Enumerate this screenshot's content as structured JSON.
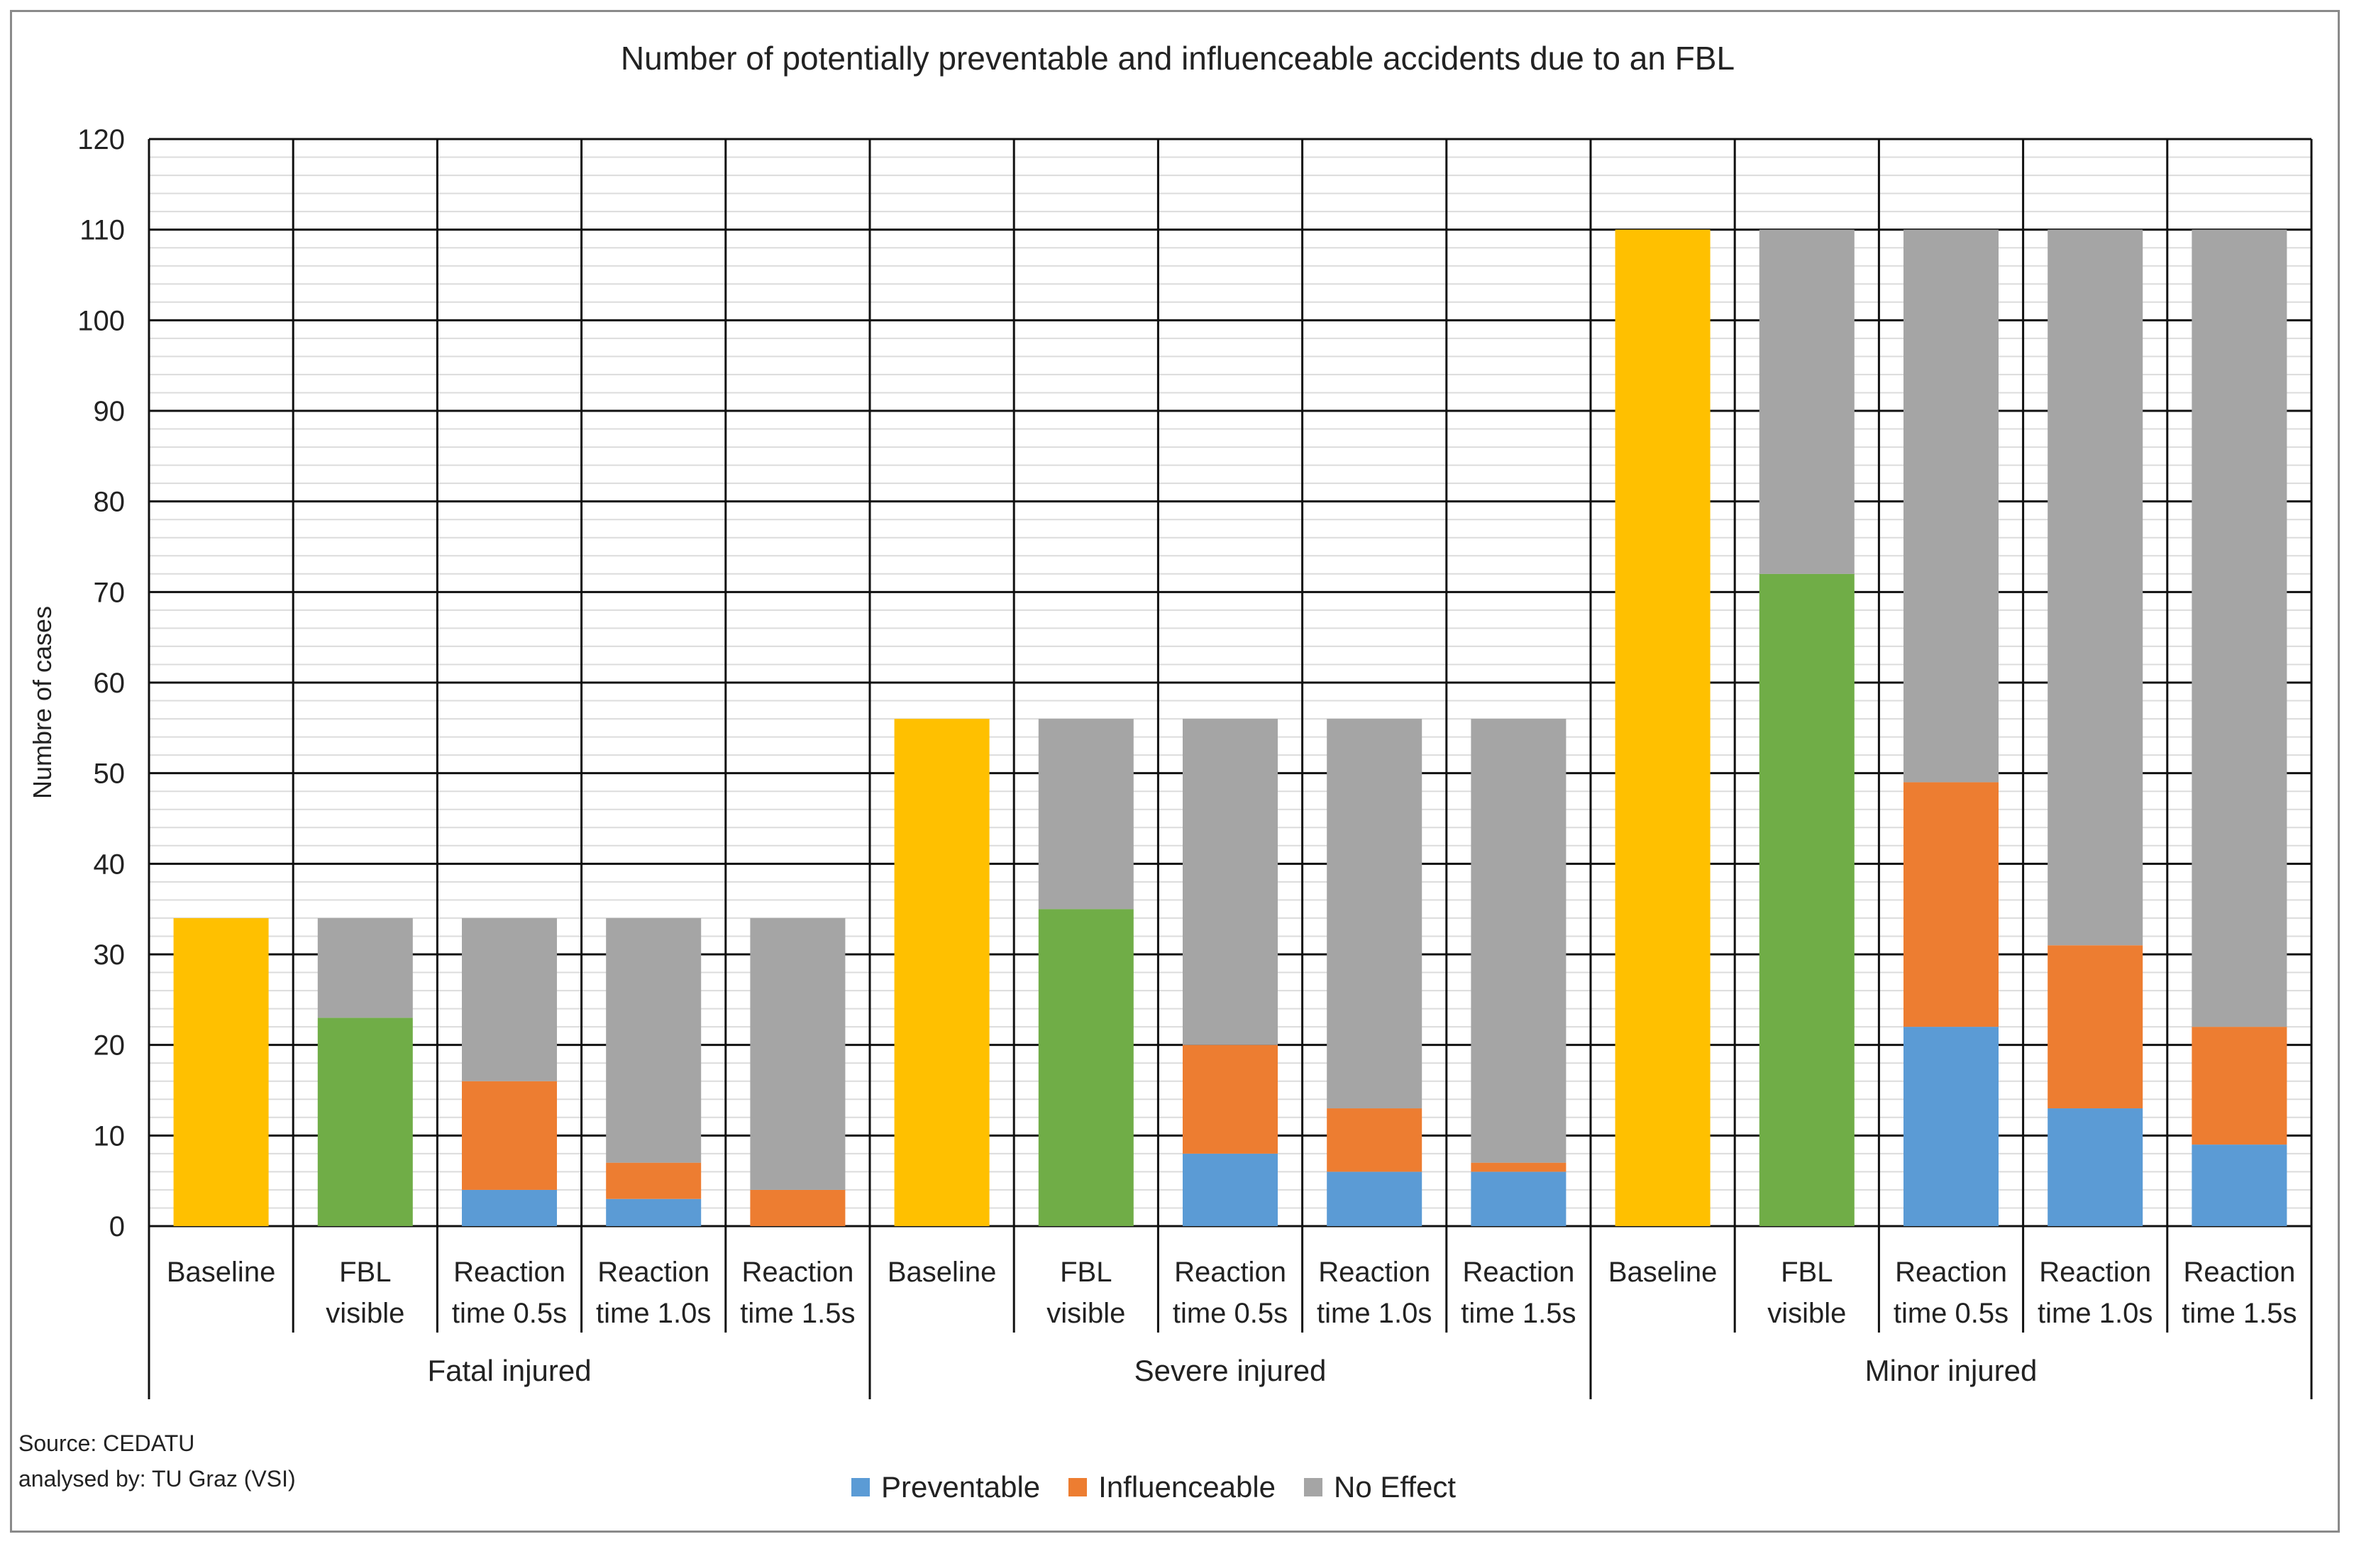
{
  "chart_data": {
    "type": "bar",
    "stacked": true,
    "title": "Number of potentially preventable and influenceable accidents due to an FBL",
    "ylabel": "Numbre of cases",
    "xlabel": "",
    "ylim": [
      0,
      120
    ],
    "yticks": [
      0,
      10,
      20,
      30,
      40,
      50,
      60,
      70,
      80,
      90,
      100,
      110,
      120
    ],
    "groups": [
      "Fatal injured",
      "Severe injured",
      "Minor injured"
    ],
    "categories": [
      [
        "Baseline"
      ],
      [
        "FBL",
        "visible"
      ],
      [
        "Reaction",
        "time 0.5s"
      ],
      [
        "Reaction",
        "time 1.0s"
      ],
      [
        "Reaction",
        "time 1.5s"
      ]
    ],
    "colors": {
      "Baseline": "#FFC000",
      "FBL visible": "#70AD47",
      "Preventable": "#5B9BD5",
      "Influenceable": "#ED7D31",
      "No Effect": "#A5A5A5"
    },
    "bars": [
      {
        "group": "Fatal injured",
        "category": "Baseline",
        "segments": [
          {
            "series": "Baseline",
            "value": 34
          }
        ]
      },
      {
        "group": "Fatal injured",
        "category": "FBL visible",
        "segments": [
          {
            "series": "FBL visible",
            "value": 23
          },
          {
            "series": "No Effect",
            "value": 11
          }
        ]
      },
      {
        "group": "Fatal injured",
        "category": "Reaction time 0.5s",
        "segments": [
          {
            "series": "Preventable",
            "value": 4
          },
          {
            "series": "Influenceable",
            "value": 12
          },
          {
            "series": "No Effect",
            "value": 18
          }
        ]
      },
      {
        "group": "Fatal injured",
        "category": "Reaction time 1.0s",
        "segments": [
          {
            "series": "Preventable",
            "value": 3
          },
          {
            "series": "Influenceable",
            "value": 4
          },
          {
            "series": "No Effect",
            "value": 27
          }
        ]
      },
      {
        "group": "Fatal injured",
        "category": "Reaction time 1.5s",
        "segments": [
          {
            "series": "Preventable",
            "value": 0
          },
          {
            "series": "Influenceable",
            "value": 4
          },
          {
            "series": "No Effect",
            "value": 30
          }
        ]
      },
      {
        "group": "Severe injured",
        "category": "Baseline",
        "segments": [
          {
            "series": "Baseline",
            "value": 56
          }
        ]
      },
      {
        "group": "Severe injured",
        "category": "FBL visible",
        "segments": [
          {
            "series": "FBL visible",
            "value": 35
          },
          {
            "series": "No Effect",
            "value": 21
          }
        ]
      },
      {
        "group": "Severe injured",
        "category": "Reaction time 0.5s",
        "segments": [
          {
            "series": "Preventable",
            "value": 8
          },
          {
            "series": "Influenceable",
            "value": 12
          },
          {
            "series": "No Effect",
            "value": 36
          }
        ]
      },
      {
        "group": "Severe injured",
        "category": "Reaction time 1.0s",
        "segments": [
          {
            "series": "Preventable",
            "value": 6
          },
          {
            "series": "Influenceable",
            "value": 7
          },
          {
            "series": "No Effect",
            "value": 43
          }
        ]
      },
      {
        "group": "Severe injured",
        "category": "Reaction time 1.5s",
        "segments": [
          {
            "series": "Preventable",
            "value": 6
          },
          {
            "series": "Influenceable",
            "value": 1
          },
          {
            "series": "No Effect",
            "value": 49
          }
        ]
      },
      {
        "group": "Minor injured",
        "category": "Baseline",
        "segments": [
          {
            "series": "Baseline",
            "value": 110
          }
        ]
      },
      {
        "group": "Minor injured",
        "category": "FBL visible",
        "segments": [
          {
            "series": "FBL visible",
            "value": 72
          },
          {
            "series": "No Effect",
            "value": 38
          }
        ]
      },
      {
        "group": "Minor injured",
        "category": "Reaction time 0.5s",
        "segments": [
          {
            "series": "Preventable",
            "value": 22
          },
          {
            "series": "Influenceable",
            "value": 27
          },
          {
            "series": "No Effect",
            "value": 61
          }
        ]
      },
      {
        "group": "Minor injured",
        "category": "Reaction time 1.0s",
        "segments": [
          {
            "series": "Preventable",
            "value": 13
          },
          {
            "series": "Influenceable",
            "value": 18
          },
          {
            "series": "No Effect",
            "value": 79
          }
        ]
      },
      {
        "group": "Minor injured",
        "category": "Reaction time 1.5s",
        "segments": [
          {
            "series": "Preventable",
            "value": 9
          },
          {
            "series": "Influenceable",
            "value": 13
          },
          {
            "series": "No Effect",
            "value": 88
          }
        ]
      }
    ],
    "legend": {
      "position": "bottom",
      "items": [
        "Preventable",
        "Influenceable",
        "No Effect"
      ]
    }
  },
  "source": {
    "line1": "Source: CEDATU",
    "line2": "analysed by: TU Graz (VSI)"
  }
}
